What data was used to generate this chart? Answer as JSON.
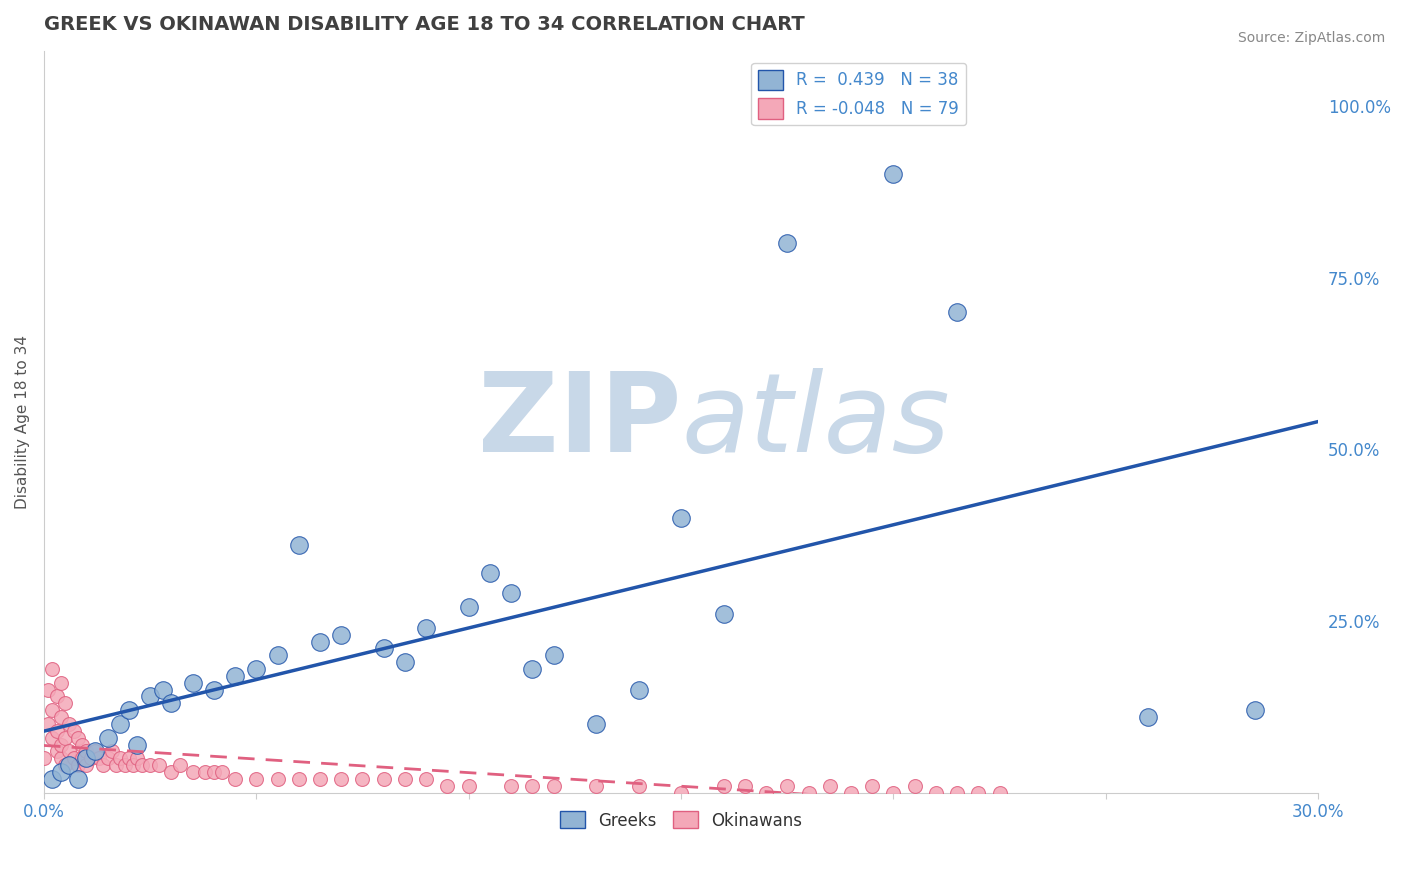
{
  "title": "GREEK VS OKINAWAN DISABILITY AGE 18 TO 34 CORRELATION CHART",
  "source_text": "Source: ZipAtlas.com",
  "ylabel": "Disability Age 18 to 34",
  "xlim": [
    0.0,
    0.3
  ],
  "ylim": [
    0.0,
    1.08
  ],
  "greek_R": 0.439,
  "greek_N": 38,
  "okinawan_R": -0.048,
  "okinawan_N": 79,
  "greek_color": "#92b4d4",
  "okinawan_color": "#f4a8b8",
  "greek_line_color": "#2255aa",
  "okinawan_line_color": "#e06080",
  "watermark_zip": "ZIP",
  "watermark_atlas": "atlas",
  "watermark_color": "#c8d8e8",
  "background_color": "#ffffff",
  "grid_color": "#cccccc",
  "title_color": "#404040",
  "legend_R_color": "#4488cc",
  "axis_tick_color": "#4488cc",
  "greek_scatter_x": [
    0.002,
    0.004,
    0.006,
    0.008,
    0.01,
    0.012,
    0.015,
    0.018,
    0.02,
    0.022,
    0.025,
    0.028,
    0.03,
    0.035,
    0.04,
    0.045,
    0.05,
    0.055,
    0.06,
    0.065,
    0.07,
    0.08,
    0.085,
    0.09,
    0.1,
    0.105,
    0.11,
    0.115,
    0.12,
    0.13,
    0.14,
    0.15,
    0.16,
    0.175,
    0.2,
    0.215,
    0.26,
    0.285
  ],
  "greek_scatter_y": [
    0.02,
    0.03,
    0.04,
    0.02,
    0.05,
    0.06,
    0.08,
    0.1,
    0.12,
    0.07,
    0.14,
    0.15,
    0.13,
    0.16,
    0.15,
    0.17,
    0.18,
    0.2,
    0.36,
    0.22,
    0.23,
    0.21,
    0.19,
    0.24,
    0.27,
    0.32,
    0.29,
    0.18,
    0.2,
    0.1,
    0.15,
    0.4,
    0.26,
    0.8,
    0.9,
    0.7,
    0.11,
    0.12
  ],
  "okinawan_scatter_x": [
    0.0,
    0.001,
    0.001,
    0.002,
    0.002,
    0.002,
    0.003,
    0.003,
    0.003,
    0.004,
    0.004,
    0.004,
    0.004,
    0.005,
    0.005,
    0.005,
    0.006,
    0.006,
    0.007,
    0.007,
    0.008,
    0.008,
    0.009,
    0.009,
    0.01,
    0.01,
    0.011,
    0.012,
    0.013,
    0.014,
    0.015,
    0.016,
    0.017,
    0.018,
    0.019,
    0.02,
    0.021,
    0.022,
    0.023,
    0.025,
    0.027,
    0.03,
    0.032,
    0.035,
    0.038,
    0.04,
    0.042,
    0.045,
    0.05,
    0.055,
    0.06,
    0.065,
    0.07,
    0.075,
    0.08,
    0.085,
    0.09,
    0.095,
    0.1,
    0.11,
    0.115,
    0.12,
    0.13,
    0.14,
    0.15,
    0.16,
    0.165,
    0.17,
    0.175,
    0.18,
    0.185,
    0.19,
    0.195,
    0.2,
    0.205,
    0.21,
    0.215,
    0.22,
    0.225
  ],
  "okinawan_scatter_y": [
    0.05,
    0.1,
    0.15,
    0.08,
    0.12,
    0.18,
    0.06,
    0.09,
    0.14,
    0.05,
    0.07,
    0.11,
    0.16,
    0.04,
    0.08,
    0.13,
    0.06,
    0.1,
    0.05,
    0.09,
    0.04,
    0.08,
    0.05,
    0.07,
    0.04,
    0.06,
    0.05,
    0.06,
    0.05,
    0.04,
    0.05,
    0.06,
    0.04,
    0.05,
    0.04,
    0.05,
    0.04,
    0.05,
    0.04,
    0.04,
    0.04,
    0.03,
    0.04,
    0.03,
    0.03,
    0.03,
    0.03,
    0.02,
    0.02,
    0.02,
    0.02,
    0.02,
    0.02,
    0.02,
    0.02,
    0.02,
    0.02,
    0.01,
    0.01,
    0.01,
    0.01,
    0.01,
    0.01,
    0.01,
    0.0,
    0.01,
    0.01,
    0.0,
    0.01,
    0.0,
    0.01,
    0.0,
    0.01,
    0.0,
    0.01,
    0.0,
    0.0,
    0.0,
    0.0
  ]
}
